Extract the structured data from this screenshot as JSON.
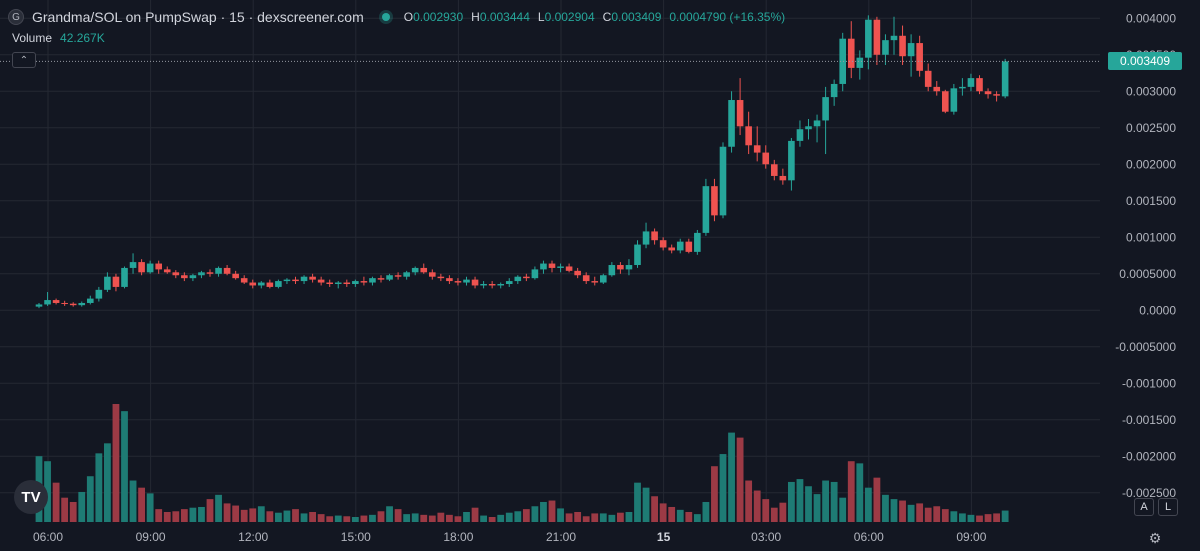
{
  "header": {
    "logo_icon": "circle-g-logo",
    "logo_glyph": "G",
    "title": "Grandma/SOL on PumpSwap · 15 · dexscreener.com",
    "ohlc": {
      "o_label": "O",
      "o_value": "0.002930",
      "h_label": "H",
      "h_value": "0.003444",
      "l_label": "L",
      "l_value": "0.002904",
      "c_label": "C",
      "c_value": "0.003409",
      "change": "0.0004790 (+16.35%)"
    }
  },
  "volume_legend": {
    "label": "Volume",
    "value": "42.267K"
  },
  "controls": {
    "collapse_glyph": "⌃",
    "auto_label": "A",
    "log_label": "L",
    "settings_glyph": "⚙",
    "tv_logo": "TV"
  },
  "colors": {
    "up": "#26a69a",
    "down": "#ef5350",
    "up_vol": "#1e7b74",
    "down_vol": "#9c3a45",
    "bg": "#131722",
    "grid": "#242833"
  },
  "chart_data": {
    "type": "candlestick",
    "title": "Grandma/SOL on PumpSwap · 15 · dexscreener.com",
    "ylim": [
      -0.0029,
      0.00425
    ],
    "yticks": [
      "0.004000",
      "0.003500",
      "0.003000",
      "0.002500",
      "0.002000",
      "0.001500",
      "0.001000",
      "0.0005000",
      "0.0000",
      "-0.0005000",
      "-0.001000",
      "-0.001500",
      "-0.002000",
      "-0.002500"
    ],
    "ytick_values": [
      0.004,
      0.0035,
      0.003,
      0.0025,
      0.002,
      0.0015,
      0.001,
      0.0005,
      0,
      -0.0005,
      -0.001,
      -0.0015,
      -0.002,
      -0.0025
    ],
    "xticks": [
      "06:00",
      "09:00",
      "12:00",
      "15:00",
      "18:00",
      "21:00",
      "15",
      "03:00",
      "06:00",
      "09:00"
    ],
    "xtick_index": [
      0,
      12,
      24,
      36,
      48,
      60,
      72,
      84,
      96,
      108
    ],
    "last_price": "0.003409",
    "last_price_value": 0.003409,
    "grid": true,
    "candles": [
      [
        5e-05,
        0.0001,
        3e-05,
        8e-05
      ],
      [
        8e-05,
        0.00025,
        6e-05,
        0.00014
      ],
      [
        0.00014,
        0.00016,
        8e-05,
        0.0001
      ],
      [
        0.0001,
        0.00013,
        6e-05,
        9e-05
      ],
      [
        9e-05,
        0.00011,
        5e-05,
        7e-05
      ],
      [
        7e-05,
        0.00012,
        5e-05,
        0.0001
      ],
      [
        0.0001,
        0.0002,
        8e-05,
        0.00016
      ],
      [
        0.00016,
        0.00032,
        0.00012,
        0.00028
      ],
      [
        0.00028,
        0.00052,
        0.00025,
        0.00046
      ],
      [
        0.00046,
        0.0005,
        0.00026,
        0.00032
      ],
      [
        0.00032,
        0.0006,
        0.0003,
        0.00058
      ],
      [
        0.00058,
        0.00078,
        0.0005,
        0.00066
      ],
      [
        0.00066,
        0.0007,
        0.00048,
        0.00052
      ],
      [
        0.00052,
        0.00068,
        0.0005,
        0.00064
      ],
      [
        0.00064,
        0.00068,
        0.0005,
        0.00056
      ],
      [
        0.00056,
        0.0006,
        0.0005,
        0.00052
      ],
      [
        0.00052,
        0.00055,
        0.00044,
        0.00048
      ],
      [
        0.00048,
        0.00052,
        0.0004,
        0.00044
      ],
      [
        0.00044,
        0.0005,
        0.0004,
        0.00048
      ],
      [
        0.00048,
        0.00054,
        0.00044,
        0.00052
      ],
      [
        0.00052,
        0.00056,
        0.00046,
        0.0005
      ],
      [
        0.0005,
        0.0006,
        0.00046,
        0.00058
      ],
      [
        0.00058,
        0.00062,
        0.00048,
        0.0005
      ],
      [
        0.0005,
        0.00054,
        0.00042,
        0.00044
      ],
      [
        0.00044,
        0.00048,
        0.00036,
        0.00038
      ],
      [
        0.00038,
        0.00042,
        0.0003,
        0.00034
      ],
      [
        0.00034,
        0.0004,
        0.0003,
        0.00038
      ],
      [
        0.00038,
        0.00042,
        0.0003,
        0.00032
      ],
      [
        0.00032,
        0.00042,
        0.0003,
        0.0004
      ],
      [
        0.0004,
        0.00044,
        0.00036,
        0.00042
      ],
      [
        0.00042,
        0.00046,
        0.00036,
        0.0004
      ],
      [
        0.0004,
        0.00048,
        0.00036,
        0.00046
      ],
      [
        0.00046,
        0.0005,
        0.00038,
        0.00042
      ],
      [
        0.00042,
        0.00046,
        0.00034,
        0.00038
      ],
      [
        0.00038,
        0.00042,
        0.00032,
        0.00036
      ],
      [
        0.00036,
        0.0004,
        0.0003,
        0.00038
      ],
      [
        0.00038,
        0.00042,
        0.00032,
        0.00036
      ],
      [
        0.00036,
        0.00042,
        0.00032,
        0.0004
      ],
      [
        0.0004,
        0.00046,
        0.00034,
        0.00038
      ],
      [
        0.00038,
        0.00046,
        0.00034,
        0.00044
      ],
      [
        0.00044,
        0.00048,
        0.00038,
        0.00042
      ],
      [
        0.00042,
        0.0005,
        0.0004,
        0.00048
      ],
      [
        0.00048,
        0.00052,
        0.00042,
        0.00046
      ],
      [
        0.00046,
        0.00054,
        0.00042,
        0.00052
      ],
      [
        0.00052,
        0.0006,
        0.00048,
        0.00058
      ],
      [
        0.00058,
        0.00064,
        0.0005,
        0.00052
      ],
      [
        0.00052,
        0.00056,
        0.00042,
        0.00046
      ],
      [
        0.00046,
        0.0005,
        0.0004,
        0.00044
      ],
      [
        0.00044,
        0.00048,
        0.00036,
        0.0004
      ],
      [
        0.0004,
        0.00044,
        0.00034,
        0.00038
      ],
      [
        0.00038,
        0.00046,
        0.00034,
        0.00042
      ],
      [
        0.00042,
        0.00046,
        0.0003,
        0.00034
      ],
      [
        0.00034,
        0.0004,
        0.0003,
        0.00036
      ],
      [
        0.00036,
        0.0004,
        0.0003,
        0.00034
      ],
      [
        0.00034,
        0.00038,
        0.0003,
        0.00036
      ],
      [
        0.00036,
        0.00044,
        0.00032,
        0.0004
      ],
      [
        0.0004,
        0.00048,
        0.00036,
        0.00046
      ],
      [
        0.00046,
        0.0005,
        0.0004,
        0.00044
      ],
      [
        0.00044,
        0.0006,
        0.00042,
        0.00056
      ],
      [
        0.00056,
        0.00068,
        0.0005,
        0.00064
      ],
      [
        0.00064,
        0.00068,
        0.00052,
        0.00058
      ],
      [
        0.00058,
        0.00064,
        0.00052,
        0.0006
      ],
      [
        0.0006,
        0.00064,
        0.00052,
        0.00054
      ],
      [
        0.00054,
        0.00058,
        0.00044,
        0.00048
      ],
      [
        0.00048,
        0.00052,
        0.00036,
        0.0004
      ],
      [
        0.0004,
        0.00046,
        0.00034,
        0.00038
      ],
      [
        0.00038,
        0.0005,
        0.00036,
        0.00048
      ],
      [
        0.00048,
        0.00066,
        0.00046,
        0.00062
      ],
      [
        0.00062,
        0.00066,
        0.0005,
        0.00056
      ],
      [
        0.00056,
        0.0007,
        0.00048,
        0.00062
      ],
      [
        0.00062,
        0.00096,
        0.00058,
        0.0009
      ],
      [
        0.0009,
        0.0012,
        0.00085,
        0.00108
      ],
      [
        0.00108,
        0.00112,
        0.0009,
        0.00096
      ],
      [
        0.00096,
        0.001,
        0.00082,
        0.00086
      ],
      [
        0.00086,
        0.0009,
        0.00078,
        0.00082
      ],
      [
        0.00082,
        0.00098,
        0.00078,
        0.00094
      ],
      [
        0.00094,
        0.00098,
        0.00078,
        0.0008
      ],
      [
        0.0008,
        0.0011,
        0.00076,
        0.00106
      ],
      [
        0.00106,
        0.0018,
        0.00102,
        0.0017
      ],
      [
        0.0017,
        0.0018,
        0.00122,
        0.0013
      ],
      [
        0.0013,
        0.0023,
        0.00126,
        0.00224
      ],
      [
        0.00224,
        0.003,
        0.00216,
        0.00288
      ],
      [
        0.00288,
        0.00318,
        0.0024,
        0.00252
      ],
      [
        0.00252,
        0.00272,
        0.00214,
        0.00226
      ],
      [
        0.00226,
        0.00252,
        0.00204,
        0.00216
      ],
      [
        0.00216,
        0.00226,
        0.00194,
        0.002
      ],
      [
        0.002,
        0.00206,
        0.00178,
        0.00184
      ],
      [
        0.00184,
        0.00194,
        0.00172,
        0.00178
      ],
      [
        0.00178,
        0.00236,
        0.00164,
        0.00232
      ],
      [
        0.00232,
        0.0026,
        0.00224,
        0.00248
      ],
      [
        0.00248,
        0.00262,
        0.00234,
        0.00252
      ],
      [
        0.00252,
        0.00268,
        0.0023,
        0.0026
      ],
      [
        0.0026,
        0.00306,
        0.00214,
        0.00292
      ],
      [
        0.00292,
        0.00316,
        0.0028,
        0.0031
      ],
      [
        0.0031,
        0.0038,
        0.003,
        0.00372
      ],
      [
        0.00372,
        0.00396,
        0.00318,
        0.00332
      ],
      [
        0.00332,
        0.00356,
        0.00316,
        0.00346
      ],
      [
        0.00346,
        0.00404,
        0.0033,
        0.00398
      ],
      [
        0.00398,
        0.00402,
        0.00336,
        0.0035
      ],
      [
        0.0035,
        0.00378,
        0.00336,
        0.0037
      ],
      [
        0.0037,
        0.00402,
        0.0035,
        0.00376
      ],
      [
        0.00376,
        0.0039,
        0.00336,
        0.00348
      ],
      [
        0.00348,
        0.00378,
        0.0032,
        0.00366
      ],
      [
        0.00366,
        0.00376,
        0.0032,
        0.00328
      ],
      [
        0.00328,
        0.00338,
        0.003,
        0.00306
      ],
      [
        0.00306,
        0.00314,
        0.00294,
        0.003
      ],
      [
        0.003,
        0.00302,
        0.0027,
        0.00272
      ],
      [
        0.00272,
        0.0031,
        0.00268,
        0.00304
      ],
      [
        0.00304,
        0.00318,
        0.00294,
        0.00306
      ],
      [
        0.00306,
        0.00324,
        0.003,
        0.00318
      ],
      [
        0.00318,
        0.00322,
        0.00296,
        0.003
      ],
      [
        0.003,
        0.00304,
        0.0029,
        0.00296
      ],
      [
        0.00296,
        0.003,
        0.00286,
        0.00294
      ],
      [
        0.00293,
        0.003444,
        0.002904,
        0.003409
      ]
    ],
    "volume": [
      92,
      85,
      55,
      34,
      28,
      42,
      64,
      96,
      110,
      165,
      155,
      58,
      48,
      40,
      18,
      14,
      15,
      18,
      20,
      21,
      32,
      38,
      26,
      23,
      17,
      19,
      22,
      15,
      13,
      16,
      18,
      12,
      14,
      11,
      8,
      9,
      8,
      7,
      9,
      10,
      15,
      22,
      18,
      11,
      12,
      10,
      9,
      13,
      10,
      8,
      14,
      20,
      9,
      7,
      10,
      13,
      15,
      18,
      22,
      28,
      30,
      19,
      12,
      14,
      8,
      12,
      12,
      10,
      13,
      14,
      55,
      48,
      36,
      26,
      21,
      17,
      14,
      11,
      28,
      78,
      95,
      125,
      118,
      58,
      44,
      32,
      20,
      27,
      56,
      60,
      50,
      39,
      58,
      56,
      34,
      85,
      82,
      48,
      62,
      38,
      32,
      30,
      24,
      26,
      20,
      22,
      18,
      15,
      12,
      10,
      9,
      11,
      12,
      16
    ]
  }
}
